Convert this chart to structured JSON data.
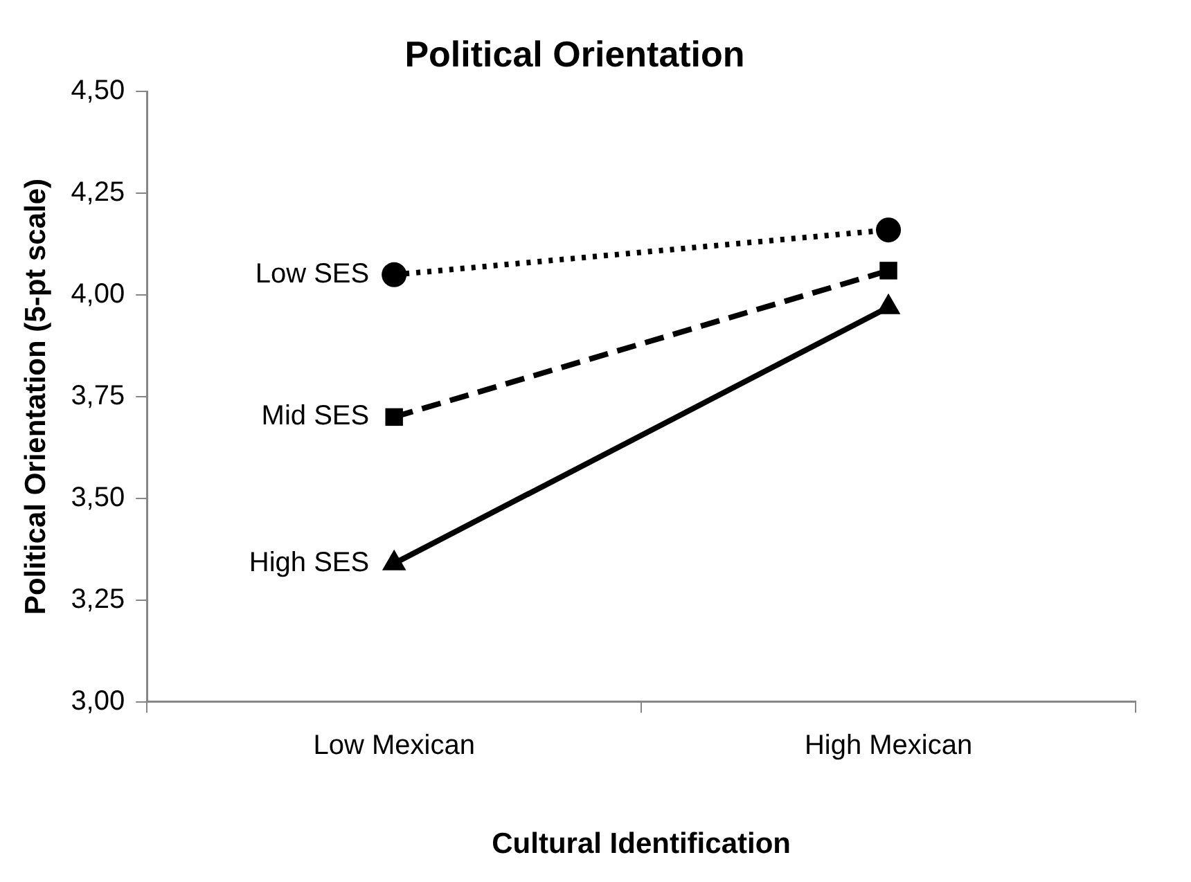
{
  "chart_data": {
    "type": "line",
    "title": "Political Orientation",
    "xlabel": "Cultural Identification",
    "ylabel": "Political Orientation (5-pt scale)",
    "categories": [
      "Low Mexican",
      "High Mexican"
    ],
    "series": [
      {
        "name": "Low SES",
        "color": "#000000",
        "values": [
          4.05,
          4.16
        ],
        "marker": "circle",
        "line_style": "dotted"
      },
      {
        "name": "Mid SES",
        "color": "#000000",
        "values": [
          3.7,
          4.06
        ],
        "marker": "square",
        "line_style": "dashed"
      },
      {
        "name": "High SES",
        "color": "#000000",
        "values": [
          3.34,
          3.97
        ],
        "marker": "triangle",
        "line_style": "solid"
      }
    ],
    "ylim": [
      3,
      4.5
    ],
    "yticks": [
      {
        "value": 3,
        "label": "3,00"
      },
      {
        "value": 3.25,
        "label": "3,25"
      },
      {
        "value": 3.5,
        "label": "3,50"
      },
      {
        "value": 3.75,
        "label": "3,75"
      },
      {
        "value": 4,
        "label": "4,00"
      },
      {
        "value": 4.25,
        "label": "4,25"
      },
      {
        "value": 4.5,
        "label": "4,50"
      }
    ],
    "grid": false,
    "legend": false
  }
}
